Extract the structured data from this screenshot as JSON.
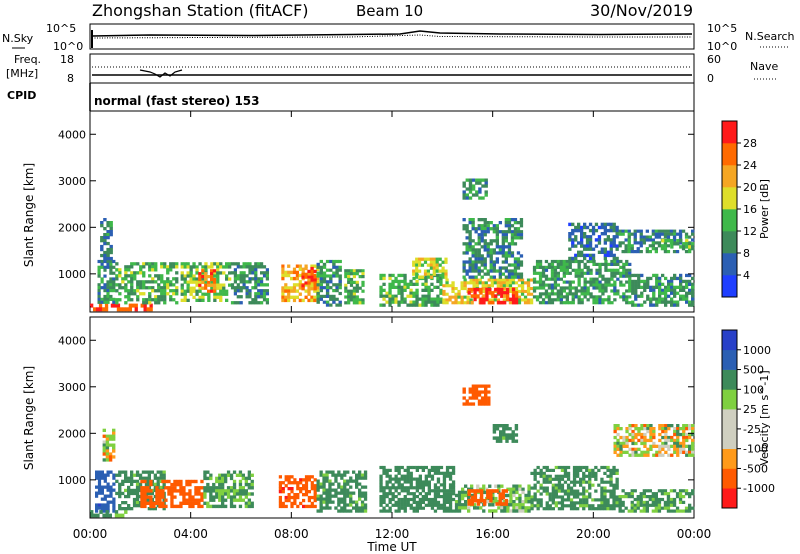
{
  "header": {
    "station": "Zhongshan Station (fitACF)",
    "beam": "Beam 10",
    "date": "30/Nov/2019"
  },
  "noise_panel": {
    "left_label": "N.Sky",
    "right_label": "N.Search",
    "left_ticks": [
      "10^5",
      "10^0"
    ],
    "right_ticks": [
      "10^5",
      "10^0"
    ]
  },
  "freq_panel": {
    "left_label_line1": "Freq.",
    "left_label_line2": "[MHz]",
    "right_label": "Nave",
    "left_ticks": [
      "18",
      "8"
    ],
    "right_ticks": [
      "60",
      "0"
    ]
  },
  "cpid_panel": {
    "label": "CPID",
    "text": "normal (fast stereo) 153"
  },
  "x_axis": {
    "label": "Time UT",
    "ticks": [
      "00:00",
      "04:00",
      "08:00",
      "12:00",
      "16:00",
      "20:00",
      "00:00"
    ]
  },
  "colors": {
    "power_scale": [
      "#1f3fff",
      "#2b5fb3",
      "#3d8a5a",
      "#3fb84a",
      "#dede2a",
      "#f5a623",
      "#ff6a00",
      "#ff1a1a"
    ],
    "velocity_scale": [
      "#ff1a1a",
      "#ff5a00",
      "#ff9a1a",
      "#cfcfc0",
      "#cfcfc0",
      "#7fd040",
      "#3d8a5a",
      "#2b5fb3",
      "#2840c8"
    ]
  },
  "chart_data": [
    {
      "type": "heatmap",
      "name": "power",
      "ylabel": "Slant Range [km]",
      "ylim": [
        180,
        4500
      ],
      "yticks": [
        1000,
        2000,
        3000,
        4000
      ],
      "xlim_hours": [
        0,
        24
      ],
      "colorbar": {
        "label": "Power [dB]",
        "ticks": [
          "4",
          "8",
          "12",
          "16",
          "20",
          "24",
          "28"
        ],
        "range": [
          0,
          30
        ]
      },
      "regions": [
        {
          "t0": 0.0,
          "t1": 2.6,
          "r0": 200,
          "r1": 360,
          "value": 26
        },
        {
          "t0": 0.3,
          "t1": 1.0,
          "r0": 360,
          "r1": 1300,
          "value": 10
        },
        {
          "t0": 0.4,
          "t1": 0.9,
          "r0": 1300,
          "r1": 2200,
          "value": 8
        },
        {
          "t0": 1.0,
          "t1": 3.5,
          "r0": 350,
          "r1": 1250,
          "value": 12
        },
        {
          "t0": 3.6,
          "t1": 5.6,
          "r0": 400,
          "r1": 1250,
          "value": 14
        },
        {
          "t0": 4.3,
          "t1": 5.0,
          "r0": 600,
          "r1": 1100,
          "value": 24
        },
        {
          "t0": 5.6,
          "t1": 7.1,
          "r0": 350,
          "r1": 1250,
          "value": 10
        },
        {
          "t0": 7.6,
          "t1": 9.1,
          "r0": 400,
          "r1": 1200,
          "value": 20
        },
        {
          "t0": 8.4,
          "t1": 9.0,
          "r0": 650,
          "r1": 1150,
          "value": 26
        },
        {
          "t0": 9.0,
          "t1": 10.0,
          "r0": 300,
          "r1": 1300,
          "value": 9
        },
        {
          "t0": 10.1,
          "t1": 10.9,
          "r0": 350,
          "r1": 1100,
          "value": 12
        },
        {
          "t0": 11.5,
          "t1": 14.0,
          "r0": 300,
          "r1": 1000,
          "value": 12
        },
        {
          "t0": 12.8,
          "t1": 14.2,
          "r0": 900,
          "r1": 1350,
          "value": 16
        },
        {
          "t0": 14.0,
          "t1": 17.6,
          "r0": 350,
          "r1": 900,
          "value": 18
        },
        {
          "t0": 15.0,
          "t1": 17.0,
          "r0": 350,
          "r1": 700,
          "value": 26
        },
        {
          "t0": 14.8,
          "t1": 17.2,
          "r0": 900,
          "r1": 2200,
          "value": 9
        },
        {
          "t0": 14.8,
          "t1": 15.8,
          "r0": 2600,
          "r1": 3050,
          "value": 10
        },
        {
          "t0": 17.6,
          "t1": 21.5,
          "r0": 350,
          "r1": 1300,
          "value": 11
        },
        {
          "t0": 19.0,
          "t1": 21.0,
          "r0": 1300,
          "r1": 2100,
          "value": 7
        },
        {
          "t0": 21.5,
          "t1": 24.0,
          "r0": 300,
          "r1": 1000,
          "value": 10
        },
        {
          "t0": 21.0,
          "t1": 24.0,
          "r0": 1450,
          "r1": 1950,
          "value": 9
        },
        {
          "t0": 22.7,
          "t1": 24.0,
          "r0": 1550,
          "r1": 1750,
          "value": 12
        }
      ]
    },
    {
      "type": "heatmap",
      "name": "velocity",
      "ylabel": "Slant Range [km]",
      "ylim": [
        180,
        4500
      ],
      "yticks": [
        1000,
        2000,
        3000,
        4000
      ],
      "xlim_hours": [
        0,
        24
      ],
      "colorbar": {
        "label": "Velocity [m s^-1]",
        "ticks": [
          "1000",
          "500",
          "100",
          "25",
          "-25",
          "-100",
          "-500",
          "-1000"
        ]
      },
      "regions": [
        {
          "t0": 0.2,
          "t1": 1.0,
          "r0": 300,
          "r1": 1200,
          "value": 900
        },
        {
          "t0": 0.0,
          "t1": 1.6,
          "r0": 200,
          "r1": 350,
          "value": 150
        },
        {
          "t0": 0.5,
          "t1": 1.0,
          "r0": 1400,
          "r1": 2100,
          "value": 0
        },
        {
          "t0": 1.0,
          "t1": 3.0,
          "r0": 350,
          "r1": 1200,
          "value": 200
        },
        {
          "t0": 2.0,
          "t1": 4.5,
          "r0": 400,
          "r1": 1000,
          "value": -300
        },
        {
          "t0": 4.5,
          "t1": 6.5,
          "r0": 400,
          "r1": 1200,
          "value": 150
        },
        {
          "t0": 7.5,
          "t1": 9.0,
          "r0": 400,
          "r1": 1100,
          "value": -400
        },
        {
          "t0": 9.0,
          "t1": 11.0,
          "r0": 300,
          "r1": 1200,
          "value": 200
        },
        {
          "t0": 11.5,
          "t1": 14.5,
          "r0": 300,
          "r1": 1300,
          "value": 250
        },
        {
          "t0": 14.5,
          "t1": 17.5,
          "r0": 300,
          "r1": 900,
          "value": 120
        },
        {
          "t0": 15.0,
          "t1": 16.6,
          "r0": 450,
          "r1": 800,
          "value": -300
        },
        {
          "t0": 14.8,
          "t1": 15.9,
          "r0": 2600,
          "r1": 3050,
          "value": -300
        },
        {
          "t0": 16.0,
          "t1": 17.0,
          "r0": 1800,
          "r1": 2200,
          "value": 200
        },
        {
          "t0": 17.5,
          "t1": 21.0,
          "r0": 350,
          "r1": 1300,
          "value": 200
        },
        {
          "t0": 20.8,
          "t1": 24.0,
          "r0": 1500,
          "r1": 2200,
          "value": 0
        },
        {
          "t0": 21.0,
          "t1": 24.0,
          "r0": 300,
          "r1": 800,
          "value": 150
        }
      ]
    }
  ]
}
